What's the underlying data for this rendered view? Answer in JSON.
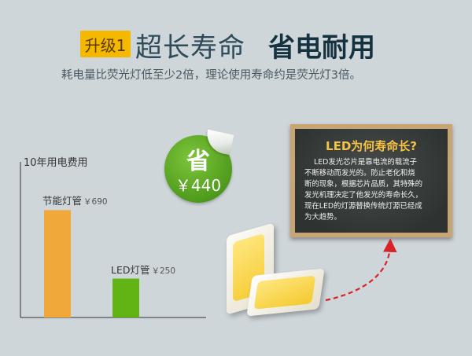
{
  "header": {
    "badge": "升级1",
    "title_light": "超长寿命",
    "title_bold": "省电耐用",
    "subtitle": "耗电量比荧光灯低至少2倍，理论使用寿命约是荧光灯3倍。"
  },
  "sticker": {
    "line1": "省",
    "line2": "￥440"
  },
  "board": {
    "title": "LED为何寿命长?",
    "lines": [
      "LED发光芯片是靠电流的载流子",
      "不断移动而发光的。防止老化和烧",
      "断的现象，根据芯片品质，其特殊的",
      "发光机理决定了他发光的寿命长久，",
      "现在LED的灯源替换传统灯源已经成",
      "为大趋势。"
    ]
  },
  "colors": {
    "background": "#ced6da",
    "fluorescent_bar": "#f0a83a",
    "led_bar": "#62b414",
    "badge": "#f5b800",
    "sticker": "#5aa823",
    "board_title": "#f6c344",
    "arrow": "#d8232a"
  },
  "chart_data": {
    "type": "bar",
    "title": "10年用电费用",
    "xlabel": "",
    "ylabel": "",
    "categories": [
      "节能灯管",
      "LED灯管"
    ],
    "price_labels": [
      "￥690",
      "￥250"
    ],
    "values": [
      690,
      250
    ],
    "ylim": [
      0,
      1000
    ],
    "colors": [
      "#f0a83a",
      "#62b414"
    ],
    "grid": false
  }
}
